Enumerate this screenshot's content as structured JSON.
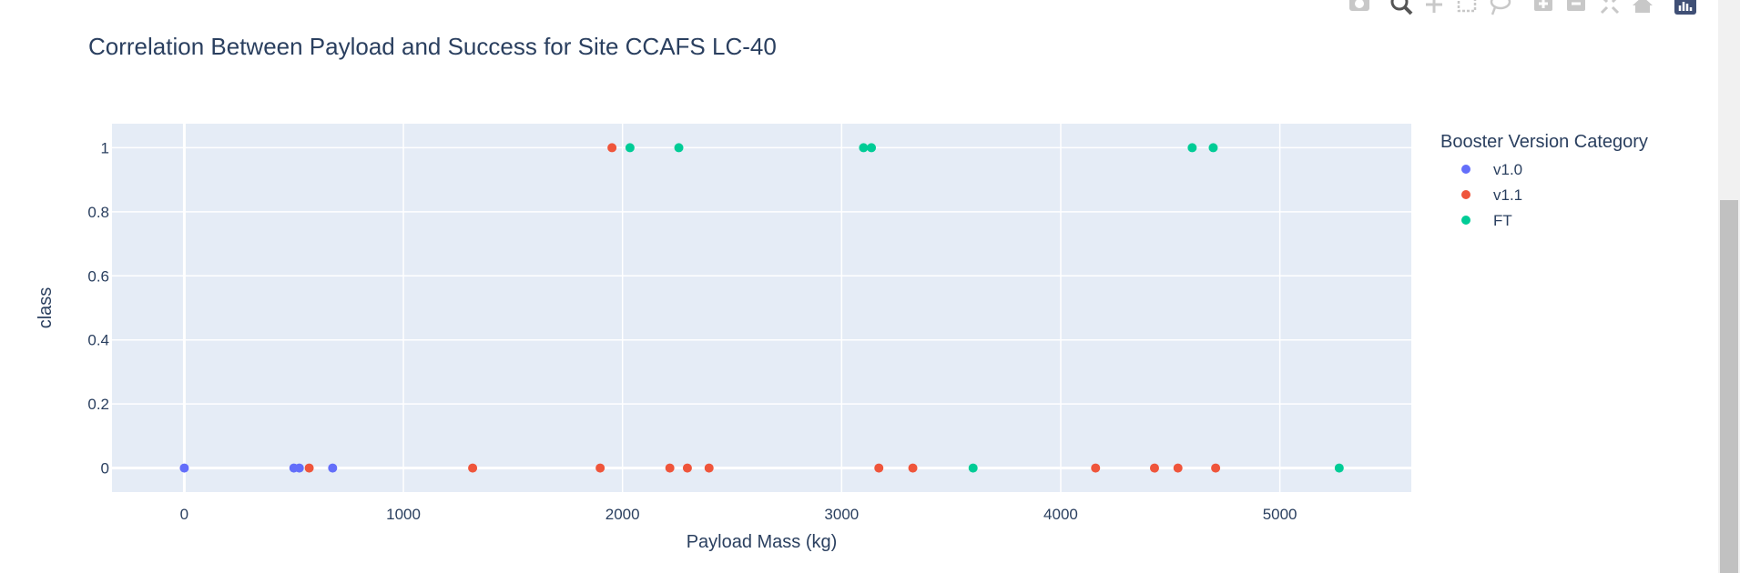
{
  "chart_data": {
    "type": "scatter",
    "title": "Correlation Between Payload and Success for Site CCAFS LC-40",
    "xlabel": "Payload Mass (kg)",
    "ylabel": "class",
    "xlim": [
      -330,
      5600
    ],
    "ylim": [
      -0.075,
      1.075
    ],
    "x_ticks": [
      0,
      1000,
      2000,
      3000,
      4000,
      5000
    ],
    "x_tick_labels": [
      "0",
      "1000",
      "2000",
      "3000",
      "4000",
      "5000"
    ],
    "y_ticks": [
      0,
      0.2,
      0.4,
      0.6,
      0.8,
      1
    ],
    "y_tick_labels": [
      "0",
      "0.2",
      "0.4",
      "0.6",
      "0.8",
      "1"
    ],
    "grid": true,
    "legend": {
      "title": "Booster Version Category",
      "placement": "right"
    },
    "series": [
      {
        "name": "v1.0",
        "color": "#636efa",
        "points": [
          [
            0,
            0
          ],
          [
            500,
            0
          ],
          [
            525,
            0
          ],
          [
            677,
            0
          ]
        ]
      },
      {
        "name": "v1.1",
        "color": "#ef553b",
        "points": [
          [
            570,
            0
          ],
          [
            1316,
            0
          ],
          [
            1898,
            0
          ],
          [
            1952,
            1
          ],
          [
            2216,
            0
          ],
          [
            2296,
            0
          ],
          [
            2395,
            0
          ],
          [
            3170,
            0
          ],
          [
            3325,
            0
          ],
          [
            4159,
            0
          ],
          [
            4428,
            0
          ],
          [
            4535,
            0
          ],
          [
            4707,
            0
          ]
        ]
      },
      {
        "name": "FT",
        "color": "#00cc96",
        "points": [
          [
            2034,
            1
          ],
          [
            2257,
            1
          ],
          [
            3100,
            1
          ],
          [
            3136,
            1
          ],
          [
            3600,
            0
          ],
          [
            4600,
            1
          ],
          [
            4696,
            1
          ],
          [
            5271,
            0
          ]
        ]
      }
    ]
  },
  "modebar": {
    "icons": [
      "camera-icon",
      "zoom-icon",
      "pan-icon",
      "box-select-icon",
      "lasso-icon",
      "zoom-in-icon",
      "zoom-out-icon",
      "autoscale-icon",
      "reset-axes-icon",
      "plotly-logo-icon"
    ]
  }
}
